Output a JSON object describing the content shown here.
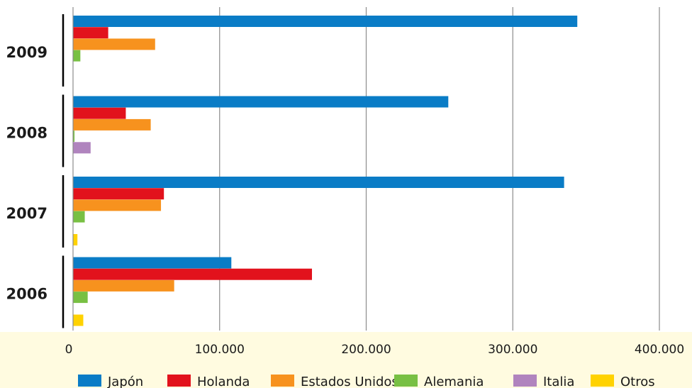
{
  "chart_data": {
    "type": "bar",
    "orientation": "horizontal",
    "categories": [
      "2009",
      "2008",
      "2007",
      "2006"
    ],
    "series": [
      {
        "name": "Japón",
        "color": "#0a7cc6",
        "values": [
          344000,
          256000,
          335000,
          108000
        ]
      },
      {
        "name": "Holanda",
        "color": "#e2121c",
        "values": [
          24000,
          36000,
          62000,
          163000
        ]
      },
      {
        "name": "Estados Unidos",
        "color": "#f7921e",
        "values": [
          56000,
          53000,
          60000,
          69000
        ]
      },
      {
        "name": "Alemania",
        "color": "#78c043",
        "values": [
          5000,
          1000,
          8000,
          10000
        ]
      },
      {
        "name": "Italia",
        "color": "#b084be",
        "values": [
          0,
          12000,
          0,
          0
        ]
      },
      {
        "name": "Otros",
        "color": "#ffd200",
        "values": [
          0,
          0,
          3000,
          7000
        ]
      }
    ],
    "xlim": [
      0,
      400000
    ],
    "x_ticks": [
      {
        "value": 0,
        "label": "0"
      },
      {
        "value": 100000,
        "label": "100.000"
      },
      {
        "value": 200000,
        "label": "200.000"
      },
      {
        "value": 300000,
        "label": "300.000"
      },
      {
        "value": 400000,
        "label": "400.000"
      }
    ],
    "grid": true,
    "legend": "bottom",
    "title": "",
    "xlabel": "",
    "ylabel": ""
  }
}
